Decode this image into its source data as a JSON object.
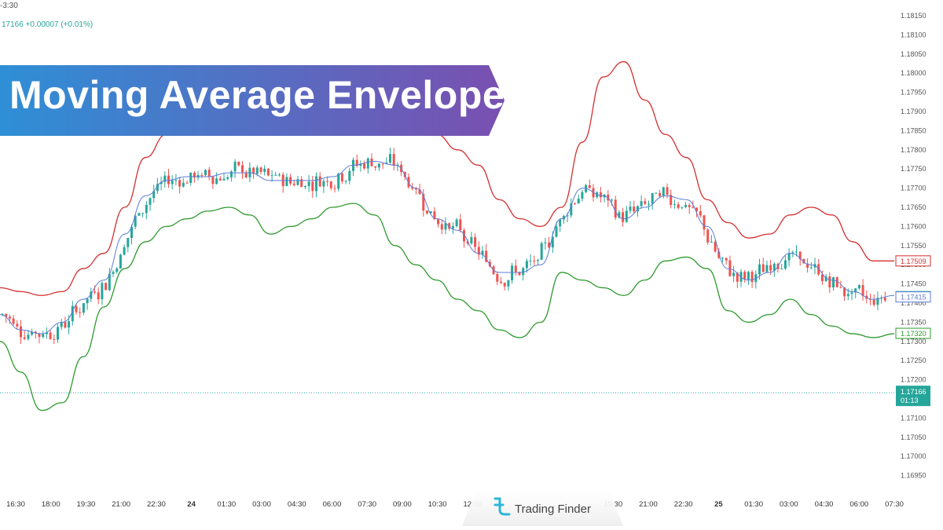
{
  "header": {
    "timeframe_fragment": "-3:30",
    "ohlc_fragment": "17166 +0.00007 (+0.01%)"
  },
  "banner": {
    "title": "Moving Average Envelope"
  },
  "watermark": {
    "brand": "Trading Finder"
  },
  "colors": {
    "upper_band": "#d32f2f",
    "lower_band": "#2e9a2e",
    "ma": "#5c7cd6",
    "candle_up": "#26a69a",
    "candle_down": "#ef5350",
    "banner_left": "#2e8fd6",
    "banner_right": "#7a4fb0",
    "price_line": "#26a69a"
  },
  "chart_data": {
    "type": "candlestick",
    "title": "Moving Average Envelope",
    "ylim": [
      1.1695,
      1.1815
    ],
    "y_ticks": [
      "1.18150",
      "1.18100",
      "1.18050",
      "1.18000",
      "1.17950",
      "1.17900",
      "1.17850",
      "1.17800",
      "1.17750",
      "1.17700",
      "1.17650",
      "1.17600",
      "1.17550",
      "1.17500",
      "1.17450",
      "1.17400",
      "1.17350",
      "1.17300",
      "1.17250",
      "1.17200",
      "1.17150",
      "1.17100",
      "1.17050",
      "1.17000",
      "1.16950"
    ],
    "x_ticks": [
      "16:30",
      "18:00",
      "19:30",
      "21:00",
      "22:30",
      "24",
      "01:30",
      "03:00",
      "04:30",
      "06:00",
      "07:30",
      "09:00",
      "10:30",
      "12:00",
      "",
      "",
      "",
      "19:30",
      "21:00",
      "22:30",
      "25",
      "01:30",
      "03:00",
      "04:30",
      "06:00",
      "07:30"
    ],
    "price_labels": [
      {
        "value": 1.17509,
        "text": "1.17509",
        "series": "upper"
      },
      {
        "value": 1.17416,
        "text": "1.17416",
        "series": "price"
      },
      {
        "value": 1.17415,
        "text": "1.17415",
        "series": "ma"
      },
      {
        "value": 1.1732,
        "text": "1.17320",
        "series": "lower"
      },
      {
        "value": 1.17166,
        "text": "1.17166",
        "series": "last"
      }
    ],
    "countdown": "01:13",
    "last_price": 1.17166,
    "series": [
      {
        "name": "upper",
        "values": [
          1.1744,
          1.1743,
          1.1742,
          1.1743,
          1.1749,
          1.1753,
          1.1765,
          1.1778,
          1.1784,
          1.1786,
          1.1788,
          1.1789,
          1.1787,
          1.1786,
          1.1786,
          1.1785,
          1.1786,
          1.1787,
          1.1789,
          1.1789,
          1.1787,
          1.1784,
          1.178,
          1.1776,
          1.1767,
          1.1762,
          1.176,
          1.1765,
          1.1782,
          1.1799,
          1.1803,
          1.1793,
          1.1784,
          1.1778,
          1.1767,
          1.1761,
          1.1757,
          1.1758,
          1.1763,
          1.1765,
          1.1763,
          1.1756,
          1.1751,
          1.1751
        ]
      },
      {
        "name": "ma",
        "values": [
          1.1737,
          1.1733,
          1.1732,
          1.1735,
          1.1741,
          1.1746,
          1.1758,
          1.1768,
          1.1772,
          1.1773,
          1.1773,
          1.1774,
          1.1774,
          1.1772,
          1.1772,
          1.1772,
          1.1773,
          1.1776,
          1.1777,
          1.1776,
          1.177,
          1.1762,
          1.1759,
          1.1753,
          1.1748,
          1.1748,
          1.175,
          1.1762,
          1.177,
          1.1768,
          1.1762,
          1.1765,
          1.1768,
          1.1767,
          1.176,
          1.1749,
          1.1746,
          1.1748,
          1.1753,
          1.175,
          1.1746,
          1.1743,
          1.1741,
          1.1742
        ]
      },
      {
        "name": "lower",
        "values": [
          1.173,
          1.1722,
          1.1712,
          1.1714,
          1.1726,
          1.1739,
          1.1749,
          1.1756,
          1.176,
          1.1762,
          1.1764,
          1.1765,
          1.1763,
          1.1758,
          1.176,
          1.1762,
          1.1765,
          1.1766,
          1.1763,
          1.1755,
          1.175,
          1.1746,
          1.1741,
          1.1738,
          1.1733,
          1.1731,
          1.1735,
          1.1748,
          1.1746,
          1.1744,
          1.1742,
          1.1746,
          1.1751,
          1.1752,
          1.1749,
          1.1738,
          1.1735,
          1.1737,
          1.1741,
          1.1737,
          1.1734,
          1.1732,
          1.1731,
          1.1732
        ]
      }
    ]
  }
}
